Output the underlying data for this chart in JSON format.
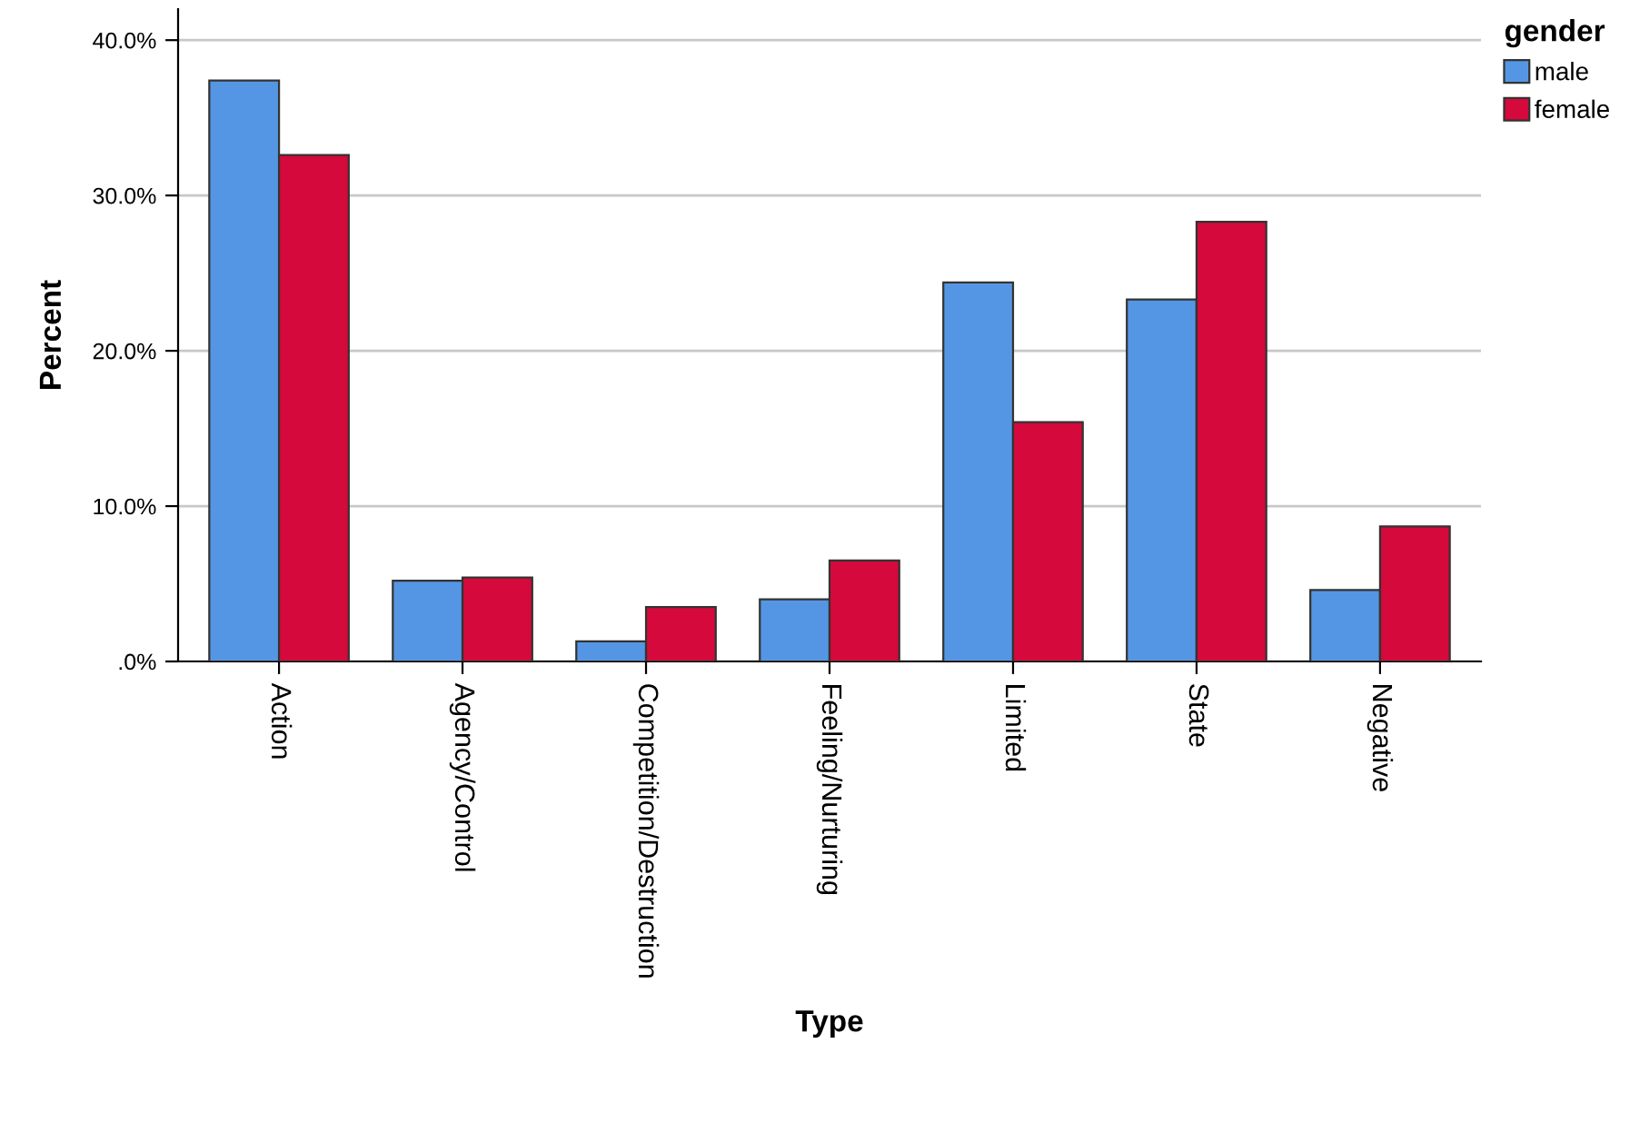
{
  "chart_data": {
    "type": "bar",
    "xlabel": "Type",
    "ylabel": "Percent",
    "legend_title": "gender",
    "categories": [
      "Action",
      "Agency/Control",
      "Competition/Destruction",
      "Feeling/Nurturing",
      "Limited",
      "State",
      "Negative"
    ],
    "series": [
      {
        "name": "male",
        "color": "#5596e4",
        "values": [
          37.4,
          5.2,
          1.3,
          4.0,
          24.4,
          23.3,
          4.6
        ]
      },
      {
        "name": "female",
        "color": "#d5093b",
        "values": [
          32.6,
          5.4,
          3.5,
          6.5,
          15.4,
          28.3,
          8.7
        ]
      }
    ],
    "ylim": [
      0,
      42
    ],
    "yticks": [
      {
        "value": 0,
        "label": ".0%"
      },
      {
        "value": 10,
        "label": "10.0%"
      },
      {
        "value": 20,
        "label": "20.0%"
      },
      {
        "value": 30,
        "label": "30.0%"
      },
      {
        "value": 40,
        "label": "40.0%"
      }
    ],
    "grid": "y",
    "legend": "top right"
  }
}
